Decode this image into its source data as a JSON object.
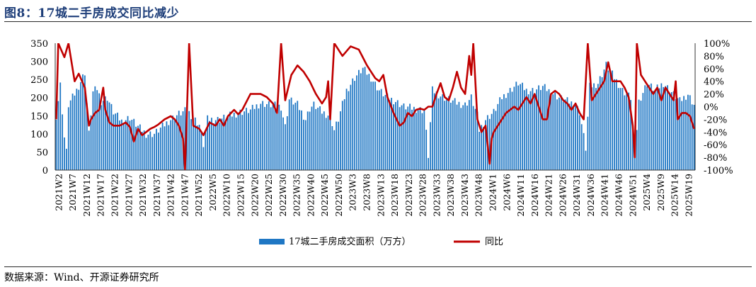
{
  "figure_title": "图8：17城二手房成交同比减少",
  "source": "数据来源：Wind、开源证券研究所",
  "chart_data": {
    "type": "bar+line",
    "legend_position": "bottom-center",
    "grid": false,
    "series": [
      {
        "name": "17城二手房成交面积（万方）",
        "type": "bar",
        "axis": "left",
        "color": "#1f77c4"
      },
      {
        "name": "同比",
        "type": "line",
        "axis": "right",
        "color": "#c00000"
      }
    ],
    "y_left": {
      "min": 0,
      "max": 350,
      "ticks": [
        "0",
        "50",
        "100",
        "150",
        "200",
        "250",
        "300",
        "350"
      ]
    },
    "y_right": {
      "min": -100,
      "max": 100,
      "ticks": [
        "-100%",
        "-80%",
        "-60%",
        "-40%",
        "-20%",
        "0%",
        "20%",
        "40%",
        "60%",
        "80%",
        "100%"
      ]
    },
    "x_tick_labels": [
      "2021W2",
      "2021W7",
      "2021W12",
      "2021W17",
      "2021W22",
      "2021W27",
      "2021W32",
      "2021W37",
      "2021W42",
      "2021W47",
      "2021W52",
      "2022W5",
      "2022W10",
      "2022W15",
      "2022W20",
      "2022W25",
      "2022W30",
      "2022W35",
      "2022W40",
      "2022W45",
      "2022W50",
      "2023W3",
      "2023W8",
      "2023W13",
      "2023W18",
      "2023W23",
      "2023W28",
      "2023W33",
      "2023W38",
      "2023W43",
      "2023W48",
      "2024W1",
      "2024W6",
      "2024W11",
      "2024W16",
      "2024W21",
      "2024W26",
      "2024W31",
      "2024W36",
      "2024W41",
      "2024W46",
      "2024W51",
      "2025W4",
      "2025W9",
      "2025W14",
      "2025W19"
    ],
    "area_key_points": [
      [
        0,
        150
      ],
      [
        2,
        235
      ],
      [
        4,
        90
      ],
      [
        5,
        50
      ],
      [
        6,
        180
      ],
      [
        10,
        220
      ],
      [
        14,
        270
      ],
      [
        16,
        100
      ],
      [
        18,
        215
      ],
      [
        20,
        225
      ],
      [
        22,
        190
      ],
      [
        25,
        200
      ],
      [
        28,
        160
      ],
      [
        32,
        135
      ],
      [
        36,
        145
      ],
      [
        40,
        120
      ],
      [
        44,
        100
      ],
      [
        48,
        100
      ],
      [
        52,
        120
      ],
      [
        56,
        140
      ],
      [
        60,
        155
      ],
      [
        64,
        165
      ],
      [
        70,
        125
      ],
      [
        72,
        70
      ],
      [
        74,
        140
      ],
      [
        80,
        140
      ],
      [
        85,
        150
      ],
      [
        90,
        160
      ],
      [
        95,
        165
      ],
      [
        100,
        185
      ],
      [
        105,
        180
      ],
      [
        110,
        175
      ],
      [
        112,
        120
      ],
      [
        114,
        195
      ],
      [
        118,
        180
      ],
      [
        122,
        140
      ],
      [
        124,
        170
      ],
      [
        126,
        180
      ],
      [
        130,
        160
      ],
      [
        134,
        150
      ],
      [
        136,
        110
      ],
      [
        138,
        140
      ],
      [
        140,
        180
      ],
      [
        142,
        220
      ],
      [
        146,
        255
      ],
      [
        150,
        280
      ],
      [
        154,
        255
      ],
      [
        158,
        220
      ],
      [
        162,
        200
      ],
      [
        166,
        190
      ],
      [
        170,
        175
      ],
      [
        175,
        170
      ],
      [
        180,
        165
      ],
      [
        182,
        40
      ],
      [
        184,
        220
      ],
      [
        188,
        205
      ],
      [
        192,
        195
      ],
      [
        196,
        185
      ],
      [
        200,
        180
      ],
      [
        203,
        200
      ],
      [
        206,
        150
      ],
      [
        207,
        110
      ],
      [
        210,
        140
      ],
      [
        214,
        160
      ],
      [
        218,
        200
      ],
      [
        222,
        220
      ],
      [
        226,
        240
      ],
      [
        230,
        220
      ],
      [
        234,
        220
      ],
      [
        238,
        230
      ],
      [
        242,
        215
      ],
      [
        246,
        200
      ],
      [
        250,
        190
      ],
      [
        254,
        180
      ],
      [
        256,
        160
      ],
      [
        259,
        60
      ],
      [
        261,
        230
      ],
      [
        265,
        240
      ],
      [
        269,
        290
      ],
      [
        273,
        255
      ],
      [
        277,
        220
      ],
      [
        281,
        200
      ],
      [
        283,
        40
      ],
      [
        285,
        190
      ],
      [
        289,
        240
      ],
      [
        293,
        220
      ],
      [
        297,
        240
      ],
      [
        301,
        215
      ],
      [
        305,
        190
      ],
      [
        309,
        210
      ],
      [
        312,
        180
      ]
    ],
    "yoy_key_points": [
      [
        0,
        -20
      ],
      [
        1,
        100
      ],
      [
        4,
        78
      ],
      [
        6,
        100
      ],
      [
        9,
        40
      ],
      [
        11,
        52
      ],
      [
        14,
        30
      ],
      [
        16,
        -30
      ],
      [
        17,
        -20
      ],
      [
        19,
        -10
      ],
      [
        21,
        -5
      ],
      [
        23,
        30
      ],
      [
        24,
        -5
      ],
      [
        26,
        -25
      ],
      [
        28,
        -30
      ],
      [
        31,
        -30
      ],
      [
        34,
        -25
      ],
      [
        36,
        -32
      ],
      [
        38,
        -55
      ],
      [
        40,
        -35
      ],
      [
        42,
        -45
      ],
      [
        44,
        -40
      ],
      [
        46,
        -35
      ],
      [
        48,
        -32
      ],
      [
        50,
        -28
      ],
      [
        53,
        -20
      ],
      [
        56,
        -15
      ],
      [
        58,
        -20
      ],
      [
        60,
        -30
      ],
      [
        62,
        -50
      ],
      [
        63,
        -100
      ],
      [
        65,
        100
      ],
      [
        67,
        -30
      ],
      [
        70,
        -35
      ],
      [
        72,
        -45
      ],
      [
        75,
        -25
      ],
      [
        78,
        -30
      ],
      [
        80,
        -20
      ],
      [
        82,
        -30
      ],
      [
        84,
        -15
      ],
      [
        87,
        -5
      ],
      [
        89,
        -12
      ],
      [
        91,
        -5
      ],
      [
        95,
        20
      ],
      [
        100,
        20
      ],
      [
        103,
        15
      ],
      [
        106,
        5
      ],
      [
        108,
        -10
      ],
      [
        110,
        100
      ],
      [
        112,
        10
      ],
      [
        115,
        50
      ],
      [
        118,
        65
      ],
      [
        121,
        55
      ],
      [
        124,
        40
      ],
      [
        127,
        20
      ],
      [
        130,
        5
      ],
      [
        132,
        15
      ],
      [
        133,
        40
      ],
      [
        134,
        -20
      ],
      [
        136,
        100
      ],
      [
        140,
        80
      ],
      [
        144,
        95
      ],
      [
        148,
        90
      ],
      [
        152,
        65
      ],
      [
        156,
        45
      ],
      [
        158,
        40
      ],
      [
        160,
        50
      ],
      [
        162,
        15
      ],
      [
        165,
        -10
      ],
      [
        168,
        -30
      ],
      [
        170,
        -25
      ],
      [
        172,
        -10
      ],
      [
        174,
        -15
      ],
      [
        176,
        -5
      ],
      [
        178,
        -3
      ],
      [
        180,
        -5
      ],
      [
        182,
        0
      ],
      [
        184,
        0
      ],
      [
        186,
        20
      ],
      [
        188,
        37
      ],
      [
        190,
        15
      ],
      [
        192,
        10
      ],
      [
        194,
        30
      ],
      [
        196,
        55
      ],
      [
        198,
        30
      ],
      [
        200,
        20
      ],
      [
        202,
        80
      ],
      [
        203,
        50
      ],
      [
        204,
        100
      ],
      [
        206,
        -20
      ],
      [
        208,
        -40
      ],
      [
        210,
        -30
      ],
      [
        212,
        -90
      ],
      [
        213,
        -50
      ],
      [
        214,
        -40
      ],
      [
        216,
        -30
      ],
      [
        218,
        -20
      ],
      [
        220,
        -10
      ],
      [
        222,
        -5
      ],
      [
        224,
        0
      ],
      [
        226,
        -5
      ],
      [
        228,
        5
      ],
      [
        230,
        15
      ],
      [
        232,
        5
      ],
      [
        234,
        20
      ],
      [
        236,
        0
      ],
      [
        238,
        -20
      ],
      [
        240,
        -20
      ],
      [
        242,
        20
      ],
      [
        244,
        25
      ],
      [
        246,
        20
      ],
      [
        248,
        10
      ],
      [
        250,
        5
      ],
      [
        252,
        -5
      ],
      [
        254,
        5
      ],
      [
        256,
        -10
      ],
      [
        258,
        -20
      ],
      [
        260,
        100
      ],
      [
        262,
        10
      ],
      [
        264,
        20
      ],
      [
        266,
        30
      ],
      [
        268,
        40
      ],
      [
        270,
        70
      ],
      [
        272,
        40
      ],
      [
        276,
        40
      ],
      [
        278,
        30
      ],
      [
        280,
        15
      ],
      [
        282,
        -30
      ],
      [
        283,
        -80
      ],
      [
        284,
        100
      ],
      [
        286,
        50
      ],
      [
        288,
        40
      ],
      [
        290,
        30
      ],
      [
        292,
        20
      ],
      [
        294,
        30
      ],
      [
        296,
        10
      ],
      [
        298,
        30
      ],
      [
        300,
        20
      ],
      [
        302,
        10
      ],
      [
        303,
        40
      ],
      [
        304,
        -20
      ],
      [
        306,
        -10
      ],
      [
        308,
        -10
      ],
      [
        310,
        -15
      ],
      [
        312,
        -35
      ]
    ]
  }
}
